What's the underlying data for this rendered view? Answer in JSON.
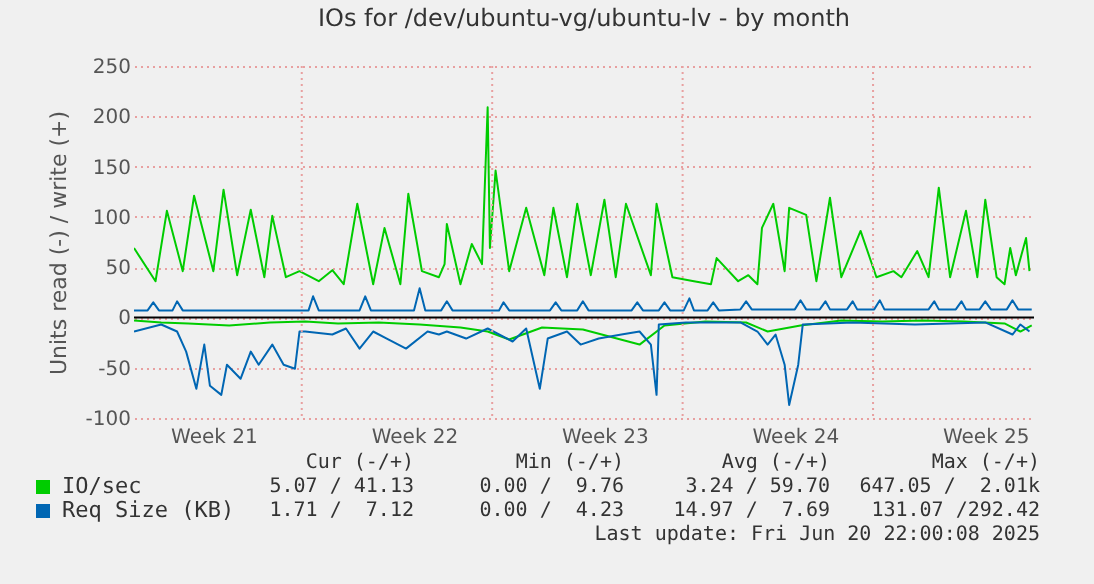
{
  "chart_data": {
    "type": "line",
    "title": "IOs for /dev/ubuntu-vg/ubuntu-lv - by month",
    "ylabel": "Units read (-) / write (+)",
    "xlim": [
      "2025-05-18T20:00",
      "2025-06-20T22:00"
    ],
    "ylim": [
      -100,
      250
    ],
    "yticks": [
      -100,
      -50,
      0,
      50,
      100,
      150,
      200,
      250
    ],
    "xticks": [
      {
        "value": "2025-05-21T18:00",
        "label": "Week 21"
      },
      {
        "value": "2025-05-29T03:00",
        "label": "Week 22"
      },
      {
        "value": "2025-06-05T03:00",
        "label": "Week 23"
      },
      {
        "value": "2025-06-12T03:00",
        "label": "Week 24"
      },
      {
        "value": "2025-06-19T03:00",
        "label": "Week 25"
      }
    ],
    "grid": "y",
    "legend": "bottom",
    "line_style": "solid",
    "ref_lines": [
      {
        "axis": "x",
        "value": "2025-05-25T00:00",
        "color": "#e8a0a0",
        "line_style": "dotted"
      },
      {
        "axis": "x",
        "value": "2025-06-01T00:00",
        "color": "#e8a0a0",
        "line_style": "dotted"
      },
      {
        "axis": "x",
        "value": "2025-06-08T00:00",
        "color": "#e8a0a0",
        "line_style": "dotted"
      },
      {
        "axis": "x",
        "value": "2025-06-15T00:00",
        "color": "#e8a0a0",
        "line_style": "dotted"
      },
      {
        "axis": "y",
        "value": 0,
        "color": "#000000",
        "line_style": "solid"
      }
    ],
    "series": [
      {
        "color": "#00cc00",
        "x": [
          "2025-05-18T20:00",
          "2025-05-19T20:00",
          "2025-05-20T20:00",
          "2025-05-22T08:00",
          "2025-05-23T20:00",
          "2025-05-25T03:00",
          "2025-05-26T08:00",
          "2025-05-27T20:00",
          "2025-05-29T08:00",
          "2025-05-30T20:00",
          "2025-05-31T20:00",
          "2025-06-01T15:00",
          "2025-06-02T20:00",
          "2025-06-04T08:00",
          "2025-06-06T10:00",
          "2025-06-07T08:00",
          "2025-06-08T20:00",
          "2025-06-10T08:00",
          "2025-06-11T03:00",
          "2025-06-12T08:00",
          "2025-06-13T20:00",
          "2025-06-15T08:00",
          "2025-06-16T20:00",
          "2025-06-18T08:00",
          "2025-06-19T20:00",
          "2025-06-20T10:00",
          "2025-06-20T20:00"
        ],
        "values": [
          -3,
          -5,
          -6,
          -8,
          -5,
          -4,
          -6,
          -5,
          -7,
          -10,
          -14,
          -22,
          -10,
          -12,
          -27,
          -8,
          -4,
          -5,
          -14,
          -8,
          -3,
          -4,
          -3,
          -4,
          -6,
          -14,
          -8
        ]
      },
      {
        "name": "IO/sec",
        "color": "#00cc00",
        "x": [
          "2025-05-18T20:00",
          "2025-05-19T15:00",
          "2025-05-20T01:00",
          "2025-05-20T15:00",
          "2025-05-21T01:00",
          "2025-05-21T18:00",
          "2025-05-22T03:00",
          "2025-05-22T15:00",
          "2025-05-23T03:00",
          "2025-05-23T15:00",
          "2025-05-23T22:00",
          "2025-05-24T10:00",
          "2025-05-24T22:00",
          "2025-05-25T15:00",
          "2025-05-26T03:00",
          "2025-05-26T13:00",
          "2025-05-27T01:00",
          "2025-05-27T15:00",
          "2025-05-28T01:00",
          "2025-05-28T15:00",
          "2025-05-28T22:00",
          "2025-05-29T10:00",
          "2025-05-30T01:00",
          "2025-05-30T06:00",
          "2025-05-30T08:00",
          "2025-05-30T20:00",
          "2025-05-31T06:00",
          "2025-05-31T15:00",
          "2025-05-31T20:00",
          "2025-05-31T22:00",
          "2025-06-01T03:00",
          "2025-06-01T15:00",
          "2025-06-02T06:00",
          "2025-06-02T22:00",
          "2025-06-03T06:00",
          "2025-06-03T18:00",
          "2025-06-04T03:00",
          "2025-06-04T15:00",
          "2025-06-05T03:00",
          "2025-06-05T13:00",
          "2025-06-05T22:00",
          "2025-06-06T20:00",
          "2025-06-07T01:00",
          "2025-06-07T15:00",
          "2025-06-08T10:00",
          "2025-06-09T01:00",
          "2025-06-09T06:00",
          "2025-06-10T01:00",
          "2025-06-10T10:00",
          "2025-06-10T18:00",
          "2025-06-10T22:00",
          "2025-06-11T08:00",
          "2025-06-11T18:00",
          "2025-06-11T22:00",
          "2025-06-12T13:00",
          "2025-06-12T22:00",
          "2025-06-13T10:00",
          "2025-06-13T20:00",
          "2025-06-14T13:00",
          "2025-06-15T03:00",
          "2025-06-15T18:00",
          "2025-06-16T01:00",
          "2025-06-16T15:00",
          "2025-06-17T01:00",
          "2025-06-17T10:00",
          "2025-06-17T20:00",
          "2025-06-18T10:00",
          "2025-06-18T20:00",
          "2025-06-19T03:00",
          "2025-06-19T13:00",
          "2025-06-19T20:00",
          "2025-06-20T01:00",
          "2025-06-20T06:00",
          "2025-06-20T15:00",
          "2025-06-20T18:00"
        ],
        "values": [
          69,
          36,
          106,
          46,
          121,
          46,
          127,
          42,
          107,
          40,
          101,
          40,
          46,
          36,
          47,
          33,
          113,
          33,
          89,
          33,
          123,
          46,
          40,
          53,
          93,
          33,
          73,
          53,
          209,
          69,
          146,
          46,
          109,
          42,
          109,
          40,
          113,
          42,
          117,
          40,
          113,
          42,
          113,
          40,
          36,
          33,
          59,
          36,
          42,
          33,
          89,
          113,
          46,
          109,
          102,
          36,
          119,
          40,
          86,
          40,
          46,
          40,
          66,
          40,
          129,
          40,
          106,
          40,
          117,
          40,
          33,
          69,
          42,
          79,
          46
        ]
      },
      {
        "color": "#0066b3",
        "x": [
          "2025-05-18T20:00",
          "2025-05-19T20:00",
          "2025-05-20T10:00",
          "2025-05-20T18:00",
          "2025-05-21T03:00",
          "2025-05-21T10:00",
          "2025-05-21T15:00",
          "2025-05-22T01:00",
          "2025-05-22T06:00",
          "2025-05-22T18:00",
          "2025-05-23T03:00",
          "2025-05-23T10:00",
          "2025-05-23T22:00",
          "2025-05-24T08:00",
          "2025-05-24T18:00",
          "2025-05-24T22:00",
          "2025-05-25T03:00",
          "2025-05-26T03:00",
          "2025-05-26T15:00",
          "2025-05-27T03:00",
          "2025-05-27T15:00",
          "2025-05-28T03:00",
          "2025-05-28T20:00",
          "2025-05-29T15:00",
          "2025-05-30T01:00",
          "2025-05-30T08:00",
          "2025-05-31T01:00",
          "2025-05-31T20:00",
          "2025-06-01T18:00",
          "2025-06-02T06:00",
          "2025-06-02T18:00",
          "2025-06-03T01:00",
          "2025-06-03T18:00",
          "2025-06-04T06:00",
          "2025-06-04T22:00",
          "2025-06-05T18:00",
          "2025-06-06T10:00",
          "2025-06-06T20:00",
          "2025-06-07T01:00",
          "2025-06-07T03:00",
          "2025-06-08T03:00",
          "2025-06-09T08:00",
          "2025-06-10T03:00",
          "2025-06-10T18:00",
          "2025-06-11T03:00",
          "2025-06-11T10:00",
          "2025-06-11T18:00",
          "2025-06-11T22:00",
          "2025-06-12T06:00",
          "2025-06-12T10:00",
          "2025-06-14T06:00",
          "2025-06-16T13:00",
          "2025-06-19T03:00",
          "2025-06-20T03:00",
          "2025-06-20T10:00",
          "2025-06-20T18:00"
        ],
        "values": [
          -14,
          -7,
          -14,
          -34,
          -71,
          -27,
          -68,
          -77,
          -47,
          -61,
          -34,
          -47,
          -27,
          -47,
          -51,
          -14,
          -14,
          -17,
          -11,
          -31,
          -14,
          -21,
          -31,
          -14,
          -17,
          -14,
          -21,
          -11,
          -24,
          -11,
          -71,
          -21,
          -14,
          -27,
          -21,
          -17,
          -14,
          -27,
          -77,
          -7,
          -5,
          -5,
          -5,
          -14,
          -27,
          -17,
          -47,
          -87,
          -47,
          -7,
          -5,
          -7,
          -5,
          -17,
          -7,
          -14
        ]
      },
      {
        "name": "Req Size (KB)",
        "color": "#0066b3",
        "x": [
          "2025-05-18T20:00",
          "2025-05-19T08:00",
          "2025-05-19T13:00",
          "2025-05-19T18:00",
          "2025-05-20T06:00",
          "2025-05-20T10:00",
          "2025-05-20T15:00",
          "2025-05-21T20:00",
          "2025-05-25T06:00",
          "2025-05-25T10:00",
          "2025-05-25T15:00",
          "2025-05-27T03:00",
          "2025-05-27T08:00",
          "2025-05-27T13:00",
          "2025-05-29T03:00",
          "2025-05-29T08:00",
          "2025-05-29T13:00",
          "2025-05-30T03:00",
          "2025-05-30T08:00",
          "2025-05-30T13:00",
          "2025-06-01T06:00",
          "2025-06-01T10:00",
          "2025-06-01T15:00",
          "2025-06-03T03:00",
          "2025-06-03T08:00",
          "2025-06-03T13:00",
          "2025-06-04T03:00",
          "2025-06-04T08:00",
          "2025-06-04T13:00",
          "2025-06-06T03:00",
          "2025-06-06T08:00",
          "2025-06-06T13:00",
          "2025-06-07T03:00",
          "2025-06-07T08:00",
          "2025-06-07T13:00",
          "2025-06-08T01:00",
          "2025-06-08T06:00",
          "2025-06-08T10:00",
          "2025-06-08T22:00",
          "2025-06-09T03:00",
          "2025-06-09T08:00",
          "2025-06-10T03:00",
          "2025-06-10T08:00",
          "2025-06-10T13:00",
          "2025-06-12T03:00",
          "2025-06-12T08:00",
          "2025-06-12T13:00",
          "2025-06-13T01:00",
          "2025-06-13T06:00",
          "2025-06-13T10:00",
          "2025-06-14T01:00",
          "2025-06-14T06:00",
          "2025-06-14T10:00",
          "2025-06-15T01:00",
          "2025-06-15T06:00",
          "2025-06-15T10:00",
          "2025-06-17T01:00",
          "2025-06-17T06:00",
          "2025-06-17T10:00",
          "2025-06-18T01:00",
          "2025-06-18T06:00",
          "2025-06-18T10:00",
          "2025-06-18T22:00",
          "2025-06-19T03:00",
          "2025-06-19T08:00",
          "2025-06-19T22:00",
          "2025-06-20T03:00",
          "2025-06-20T08:00",
          "2025-06-20T20:00"
        ],
        "values": [
          7,
          7,
          15,
          7,
          7,
          16,
          7,
          7,
          7,
          21,
          7,
          7,
          21,
          7,
          7,
          29,
          7,
          7,
          16,
          7,
          7,
          15,
          7,
          7,
          15,
          7,
          7,
          16,
          7,
          7,
          15,
          7,
          7,
          15,
          7,
          7,
          19,
          7,
          7,
          15,
          7,
          8,
          16,
          8,
          8,
          17,
          8,
          8,
          16,
          8,
          8,
          16,
          8,
          8,
          17,
          8,
          8,
          16,
          8,
          8,
          16,
          8,
          8,
          16,
          8,
          8,
          17,
          8,
          8
        ]
      }
    ],
    "annotations": [
      "Cur (-/+)",
      "Min (-/+)",
      "Avg (-/+)",
      "Max (-/+)",
      "5.07 / 41.13",
      "0.00 /  9.76",
      "3.24 / 59.70",
      "647.05 /  2.01k",
      "1.71 /  7.12",
      "0.00 /  4.23",
      "14.97 /  7.69",
      "131.07 /292.42",
      "Last update: Fri Jun 20 22:00:08 2025"
    ]
  }
}
